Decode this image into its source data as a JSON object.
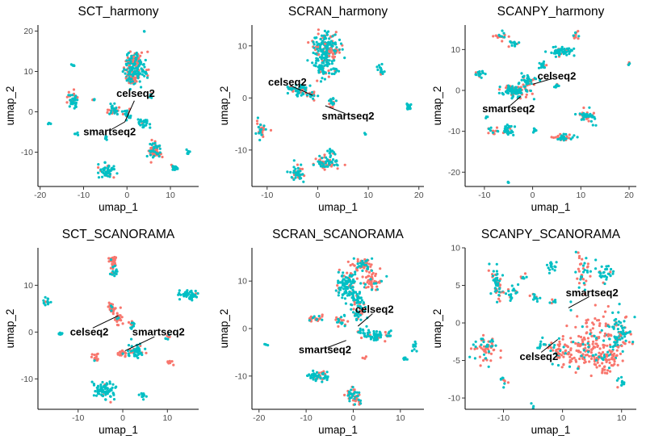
{
  "chart_data": [
    {
      "type": "scatter",
      "title": "SCT_harmony",
      "xlabel": "umap_1",
      "ylabel": "umap_2",
      "xlim": [
        -20.5,
        16.5
      ],
      "ylim": [
        -18.5,
        21.5
      ],
      "xticks": [
        -20,
        -10,
        0,
        10
      ],
      "yticks": [
        -10,
        0,
        10,
        20
      ],
      "annotations": [
        {
          "text": "celseq2",
          "point": [
            -0.5,
            -2.5
          ],
          "label_at": [
            2,
            4.5
          ]
        },
        {
          "text": "smartseq2",
          "point": [
            -0.5,
            -2.5
          ],
          "label_at": [
            -4,
            -5
          ]
        }
      ],
      "clusters": [
        {
          "x": 1.5,
          "y": 10.5,
          "sx": 1.2,
          "sy": 1.8,
          "n": 150,
          "salmon": 0.35
        },
        {
          "x": 1.5,
          "y": 13,
          "sx": 0.8,
          "sy": 0.8,
          "n": 40,
          "salmon": 0.6
        },
        {
          "x": 4,
          "y": 10,
          "sx": 0.5,
          "sy": 0.5,
          "n": 12,
          "salmon": 0.3
        },
        {
          "x": 1,
          "y": 8,
          "sx": 0.7,
          "sy": 0.5,
          "n": 25,
          "salmon": 0.7
        },
        {
          "x": 5.5,
          "y": 4,
          "sx": 0.3,
          "sy": 0.3,
          "n": 10,
          "salmon": 0.5
        },
        {
          "x": -12.5,
          "y": 3,
          "sx": 0.7,
          "sy": 0.9,
          "n": 45,
          "salmon": 0.5
        },
        {
          "x": -7.5,
          "y": 3,
          "sx": 0.2,
          "sy": 0.2,
          "n": 6,
          "salmon": 0.3
        },
        {
          "x": -12.5,
          "y": 11.5,
          "sx": 0.2,
          "sy": 0.2,
          "n": 5,
          "salmon": 0.0
        },
        {
          "x": -3,
          "y": 0.5,
          "sx": 0.7,
          "sy": 0.6,
          "n": 40,
          "salmon": 0.45
        },
        {
          "x": 0,
          "y": -0.5,
          "sx": 0.6,
          "sy": 0.6,
          "n": 25,
          "salmon": 0.5
        },
        {
          "x": 4,
          "y": -3,
          "sx": 0.6,
          "sy": 0.5,
          "n": 25,
          "salmon": 0.1
        },
        {
          "x": -5,
          "y": -6.5,
          "sx": 0.2,
          "sy": 0.3,
          "n": 6,
          "salmon": 0.0
        },
        {
          "x": -11.5,
          "y": -5.5,
          "sx": 0.2,
          "sy": 0.2,
          "n": 4,
          "salmon": 0.0
        },
        {
          "x": 6.5,
          "y": -9.5,
          "sx": 0.8,
          "sy": 1.0,
          "n": 70,
          "salmon": 0.55
        },
        {
          "x": 11,
          "y": -14,
          "sx": 0.4,
          "sy": 0.4,
          "n": 20,
          "salmon": 0.2
        },
        {
          "x": 14,
          "y": -10,
          "sx": 0.3,
          "sy": 0.3,
          "n": 8,
          "salmon": 0.0
        },
        {
          "x": -4.5,
          "y": -14.5,
          "sx": 0.9,
          "sy": 0.9,
          "n": 55,
          "salmon": 0.15
        },
        {
          "x": -18,
          "y": -3,
          "sx": 0.2,
          "sy": 0.2,
          "n": 4,
          "salmon": 0.0
        },
        {
          "x": 4,
          "y": 20,
          "sx": 0.1,
          "sy": 0.1,
          "n": 3,
          "salmon": 0.0
        }
      ]
    },
    {
      "type": "scatter",
      "title": "SCRAN_harmony",
      "xlabel": "umap_1",
      "ylabel": "umap_2",
      "xlim": [
        -13,
        21
      ],
      "ylim": [
        -17,
        14
      ],
      "xticks": [
        -10,
        0,
        10,
        20
      ],
      "yticks": [
        -10,
        0,
        10
      ],
      "annotations": [
        {
          "text": "celseq2",
          "point": [
            -1,
            0.5
          ],
          "label_at": [
            -6,
            3
          ]
        },
        {
          "text": "smartseq2",
          "point": [
            1.5,
            -1.5
          ],
          "label_at": [
            6,
            -3.5
          ]
        }
      ],
      "clusters": [
        {
          "x": 1.5,
          "y": 10,
          "sx": 1.3,
          "sy": 1.1,
          "n": 140,
          "salmon": 0.35
        },
        {
          "x": 1,
          "y": 6.5,
          "sx": 0.9,
          "sy": 1.3,
          "n": 80,
          "salmon": 0.25
        },
        {
          "x": 3,
          "y": 8.5,
          "sx": 0.5,
          "sy": 0.6,
          "n": 20,
          "salmon": 0.7
        },
        {
          "x": 3.5,
          "y": 5.5,
          "sx": 0.3,
          "sy": 0.4,
          "n": 10,
          "salmon": 0.2
        },
        {
          "x": 12.5,
          "y": 5.5,
          "sx": 0.4,
          "sy": 0.6,
          "n": 15,
          "salmon": 0.2
        },
        {
          "x": -4,
          "y": 1.5,
          "sx": 1.2,
          "sy": 0.6,
          "n": 55,
          "salmon": 0.35
        },
        {
          "x": -1,
          "y": 0.5,
          "sx": 0.6,
          "sy": 0.5,
          "n": 20,
          "salmon": 0.4
        },
        {
          "x": 3,
          "y": -0.5,
          "sx": 0.5,
          "sy": 0.6,
          "n": 18,
          "salmon": 0.3
        },
        {
          "x": 18,
          "y": -1.8,
          "sx": 0.3,
          "sy": 0.4,
          "n": 14,
          "salmon": 0.0
        },
        {
          "x": -11,
          "y": -6,
          "sx": 0.5,
          "sy": 1.0,
          "n": 30,
          "salmon": 0.6
        },
        {
          "x": 2,
          "y": -12.5,
          "sx": 1.2,
          "sy": 0.6,
          "n": 60,
          "salmon": 0.5
        },
        {
          "x": 2.5,
          "y": -10.5,
          "sx": 0.6,
          "sy": 0.4,
          "n": 15,
          "salmon": 0.2
        },
        {
          "x": -4,
          "y": -14.5,
          "sx": 0.8,
          "sy": 0.8,
          "n": 50,
          "salmon": 0.25
        },
        {
          "x": 9.5,
          "y": -7,
          "sx": 0.1,
          "sy": 0.1,
          "n": 3,
          "salmon": 0.0
        }
      ]
    },
    {
      "type": "scatter",
      "title": "SCANPY_harmony",
      "xlabel": "umap_1",
      "ylabel": "umap_2",
      "xlim": [
        -14,
        21.5
      ],
      "ylim": [
        -23.5,
        16
      ],
      "xticks": [
        -10,
        0,
        10,
        20
      ],
      "yticks": [
        -20,
        -10,
        0,
        10
      ],
      "annotations": [
        {
          "text": "celseq2",
          "point": [
            0,
            1.5
          ],
          "label_at": [
            5,
            3.5
          ]
        },
        {
          "text": "smartseq2",
          "point": [
            -2.5,
            -1.5
          ],
          "label_at": [
            -5,
            -4.5
          ]
        }
      ],
      "clusters": [
        {
          "x": -3.5,
          "y": 0,
          "sx": 1.4,
          "sy": 0.9,
          "n": 110,
          "salmon": 0.3
        },
        {
          "x": -1,
          "y": 2.5,
          "sx": 0.8,
          "sy": 0.6,
          "n": 35,
          "salmon": 0.2
        },
        {
          "x": 6,
          "y": 9.5,
          "sx": 1.2,
          "sy": 0.6,
          "n": 55,
          "salmon": 0.15
        },
        {
          "x": 2,
          "y": 6,
          "sx": 0.5,
          "sy": 0.4,
          "n": 15,
          "salmon": 0.1
        },
        {
          "x": -7,
          "y": 13.5,
          "sx": 0.6,
          "sy": 0.5,
          "n": 20,
          "salmon": 0.6
        },
        {
          "x": -4,
          "y": 11.5,
          "sx": 0.5,
          "sy": 0.4,
          "n": 15,
          "salmon": 0.4
        },
        {
          "x": 9,
          "y": 13.5,
          "sx": 0.4,
          "sy": 0.4,
          "n": 12,
          "salmon": 0.5
        },
        {
          "x": -11,
          "y": 4,
          "sx": 0.5,
          "sy": 0.6,
          "n": 20,
          "salmon": 0.3
        },
        {
          "x": 5,
          "y": 1,
          "sx": 0.3,
          "sy": 0.3,
          "n": 8,
          "salmon": 0.4
        },
        {
          "x": 11.5,
          "y": -6.5,
          "sx": 0.8,
          "sy": 0.8,
          "n": 50,
          "salmon": 0.4
        },
        {
          "x": 6.5,
          "y": -11.5,
          "sx": 0.9,
          "sy": 0.4,
          "n": 40,
          "salmon": 0.55
        },
        {
          "x": -8,
          "y": -10,
          "sx": 0.5,
          "sy": 0.5,
          "n": 15,
          "salmon": 0.6
        },
        {
          "x": -5,
          "y": -10,
          "sx": 0.7,
          "sy": 0.8,
          "n": 30,
          "salmon": 0.2
        },
        {
          "x": 0.5,
          "y": -10,
          "sx": 0.3,
          "sy": 0.3,
          "n": 8,
          "salmon": 0.0
        },
        {
          "x": 20,
          "y": 6.5,
          "sx": 0.2,
          "sy": 0.2,
          "n": 5,
          "salmon": 0.8
        },
        {
          "x": -5,
          "y": -22.5,
          "sx": 0.1,
          "sy": 0.1,
          "n": 3,
          "salmon": 0.0
        },
        {
          "x": -9.5,
          "y": -6.5,
          "sx": 0.1,
          "sy": 0.1,
          "n": 3,
          "salmon": 0.0
        }
      ]
    },
    {
      "type": "scatter",
      "title": "SCT_SCANORAMA",
      "xlabel": "umap_1",
      "ylabel": "umap_2",
      "xlim": [
        -19,
        17
      ],
      "ylim": [
        -16.5,
        18
      ],
      "xticks": [
        -10,
        0,
        10
      ],
      "yticks": [
        -10,
        0,
        10
      ],
      "annotations": [
        {
          "text": "celseq2",
          "point": [
            -1,
            3.5
          ],
          "label_at": [
            -7.5,
            0
          ]
        },
        {
          "text": "smartseq2",
          "point": [
            0.5,
            -4
          ],
          "label_at": [
            8,
            0
          ]
        }
      ],
      "clusters": [
        {
          "x": -2,
          "y": 15,
          "sx": 0.5,
          "sy": 0.9,
          "n": 35,
          "salmon": 0.85
        },
        {
          "x": -2,
          "y": 12.5,
          "sx": 0.4,
          "sy": 0.4,
          "n": 12,
          "salmon": 0.2
        },
        {
          "x": 15,
          "y": 8,
          "sx": 1.1,
          "sy": 0.6,
          "n": 55,
          "salmon": 0.15
        },
        {
          "x": -17,
          "y": 6.5,
          "sx": 0.4,
          "sy": 0.5,
          "n": 15,
          "salmon": 0.2
        },
        {
          "x": -2.5,
          "y": 5,
          "sx": 0.6,
          "sy": 0.6,
          "n": 25,
          "salmon": 0.8
        },
        {
          "x": -1,
          "y": 3,
          "sx": 0.5,
          "sy": 0.8,
          "n": 25,
          "salmon": 0.75
        },
        {
          "x": 2,
          "y": 1.5,
          "sx": 0.4,
          "sy": 0.5,
          "n": 12,
          "salmon": 0.5
        },
        {
          "x": 3,
          "y": -4,
          "sx": 1.1,
          "sy": 0.7,
          "n": 55,
          "salmon": 0.2
        },
        {
          "x": 0,
          "y": -4.5,
          "sx": 0.6,
          "sy": 0.4,
          "n": 20,
          "salmon": 0.85
        },
        {
          "x": 10,
          "y": -1,
          "sx": 0.3,
          "sy": 0.3,
          "n": 8,
          "salmon": 0.5
        },
        {
          "x": -6,
          "y": -5.5,
          "sx": 0.6,
          "sy": 0.4,
          "n": 15,
          "salmon": 0.9
        },
        {
          "x": -14,
          "y": -0.5,
          "sx": 0.3,
          "sy": 0.3,
          "n": 6,
          "salmon": 0.2
        },
        {
          "x": -4,
          "y": -12.5,
          "sx": 1.3,
          "sy": 0.8,
          "n": 75,
          "salmon": 0.05
        },
        {
          "x": 4.5,
          "y": -13.5,
          "sx": 0.3,
          "sy": 0.4,
          "n": 10,
          "salmon": 0.0
        },
        {
          "x": 10.5,
          "y": -6.5,
          "sx": 0.4,
          "sy": 0.3,
          "n": 8,
          "salmon": 0.9
        }
      ]
    },
    {
      "type": "scatter",
      "title": "SCRAN_SCANORAMA",
      "xlabel": "umap_1",
      "ylabel": "umap_2",
      "xlim": [
        -21.5,
        15
      ],
      "ylim": [
        -17,
        17
      ],
      "xticks": [
        -20,
        -10,
        0,
        10
      ],
      "yticks": [
        -10,
        0,
        10
      ],
      "annotations": [
        {
          "text": "celseq2",
          "point": [
            1,
            0.5
          ],
          "label_at": [
            4.5,
            4
          ]
        },
        {
          "text": "smartseq2",
          "point": [
            -1.5,
            -2.5
          ],
          "label_at": [
            -6,
            -4.5
          ]
        }
      ],
      "clusters": [
        {
          "x": 2,
          "y": 13.5,
          "sx": 1.4,
          "sy": 0.6,
          "n": 55,
          "salmon": 0.7
        },
        {
          "x": -1.5,
          "y": 9.5,
          "sx": 1.0,
          "sy": 1.5,
          "n": 90,
          "salmon": 0.2
        },
        {
          "x": 4,
          "y": 10,
          "sx": 1.0,
          "sy": 1.0,
          "n": 50,
          "salmon": 0.75
        },
        {
          "x": 0.5,
          "y": 6,
          "sx": 1.1,
          "sy": 1.0,
          "n": 55,
          "salmon": 0.15
        },
        {
          "x": 1.5,
          "y": 3,
          "sx": 0.6,
          "sy": 0.6,
          "n": 25,
          "salmon": 0.3
        },
        {
          "x": -8,
          "y": 2,
          "sx": 0.8,
          "sy": 0.4,
          "n": 25,
          "salmon": 0.7
        },
        {
          "x": -2.5,
          "y": 1.5,
          "sx": 0.6,
          "sy": 0.7,
          "n": 20,
          "salmon": 0.35
        },
        {
          "x": 2,
          "y": -1,
          "sx": 0.6,
          "sy": 0.6,
          "n": 20,
          "salmon": 0.3
        },
        {
          "x": 4.5,
          "y": -1.5,
          "sx": 1.0,
          "sy": 0.6,
          "n": 40,
          "salmon": 0.05
        },
        {
          "x": 7.5,
          "y": -1,
          "sx": 0.4,
          "sy": 0.4,
          "n": 10,
          "salmon": 0.4
        },
        {
          "x": 13,
          "y": -4,
          "sx": 0.3,
          "sy": 0.4,
          "n": 10,
          "salmon": 0.0
        },
        {
          "x": 11,
          "y": -6.5,
          "sx": 0.3,
          "sy": 0.3,
          "n": 6,
          "salmon": 0.0
        },
        {
          "x": -7.5,
          "y": -10,
          "sx": 1.1,
          "sy": 0.5,
          "n": 55,
          "salmon": 0.25
        },
        {
          "x": 0,
          "y": -14,
          "sx": 0.9,
          "sy": 0.6,
          "n": 45,
          "salmon": 0.5
        },
        {
          "x": 1,
          "y": -15.5,
          "sx": 0.5,
          "sy": 0.4,
          "n": 15,
          "salmon": 0.8
        },
        {
          "x": -18.5,
          "y": -3.5,
          "sx": 0.2,
          "sy": 0.2,
          "n": 4,
          "salmon": 0.0
        },
        {
          "x": 2.5,
          "y": -6,
          "sx": 0.2,
          "sy": 0.2,
          "n": 4,
          "salmon": 1.0
        }
      ]
    },
    {
      "type": "scatter",
      "title": "SCANPY_SCANORAMA",
      "xlabel": "umap_1",
      "ylabel": "umap_2",
      "xlim": [
        -16.5,
        12.5
      ],
      "ylim": [
        -11.5,
        10
      ],
      "xticks": [
        -10,
        0,
        10
      ],
      "yticks": [
        -10,
        -5,
        0,
        5,
        10
      ],
      "annotations": [
        {
          "text": "smartseq2",
          "point": [
            1,
            2
          ],
          "label_at": [
            5,
            4
          ]
        },
        {
          "text": "celseq2",
          "point": [
            -0.8,
            -2.2
          ],
          "label_at": [
            -4,
            -4.5
          ]
        }
      ],
      "clusters": [
        {
          "x": -11,
          "y": 5.5,
          "sx": 0.6,
          "sy": 1.2,
          "n": 55,
          "salmon": 0.4
        },
        {
          "x": -8.5,
          "y": 4,
          "sx": 0.5,
          "sy": 0.5,
          "n": 20,
          "salmon": 0.1
        },
        {
          "x": -6.5,
          "y": 6,
          "sx": 0.3,
          "sy": 0.3,
          "n": 8,
          "salmon": 0.2
        },
        {
          "x": -4.5,
          "y": 3.5,
          "sx": 0.4,
          "sy": 0.4,
          "n": 12,
          "salmon": 0.1
        },
        {
          "x": -2,
          "y": 7.5,
          "sx": 0.5,
          "sy": 0.5,
          "n": 15,
          "salmon": 0.1
        },
        {
          "x": 3.5,
          "y": 6.5,
          "sx": 0.7,
          "sy": 1.0,
          "n": 40,
          "salmon": 0.6
        },
        {
          "x": 7,
          "y": 7,
          "sx": 0.7,
          "sy": 0.8,
          "n": 30,
          "salmon": 0.1
        },
        {
          "x": -1.5,
          "y": 3,
          "sx": 0.3,
          "sy": 0.3,
          "n": 6,
          "salmon": 0.1
        },
        {
          "x": 9.5,
          "y": -1.5,
          "sx": 1.0,
          "sy": 1.3,
          "n": 90,
          "salmon": 0.25
        },
        {
          "x": 5,
          "y": -2.5,
          "sx": 2.5,
          "sy": 2.0,
          "n": 150,
          "salmon": 0.85
        },
        {
          "x": 7,
          "y": -5,
          "sx": 1.2,
          "sy": 1.0,
          "n": 50,
          "salmon": 0.9
        },
        {
          "x": 1.5,
          "y": -4,
          "sx": 1.5,
          "sy": 0.9,
          "n": 50,
          "salmon": 0.85
        },
        {
          "x": -13,
          "y": -3.5,
          "sx": 1.0,
          "sy": 0.9,
          "n": 60,
          "salmon": 0.6
        },
        {
          "x": -3.5,
          "y": -3,
          "sx": 0.5,
          "sy": 0.4,
          "n": 12,
          "salmon": 0.1
        },
        {
          "x": -1,
          "y": -3.5,
          "sx": 0.7,
          "sy": 0.7,
          "n": 25,
          "salmon": 0.6
        },
        {
          "x": -10,
          "y": -7.5,
          "sx": 0.4,
          "sy": 0.4,
          "n": 10,
          "salmon": 0.5
        },
        {
          "x": 10,
          "y": -8,
          "sx": 0.4,
          "sy": 0.3,
          "n": 12,
          "salmon": 0.2
        },
        {
          "x": -5,
          "y": -11,
          "sx": 0.2,
          "sy": 0.2,
          "n": 4,
          "salmon": 0.0
        }
      ]
    }
  ]
}
